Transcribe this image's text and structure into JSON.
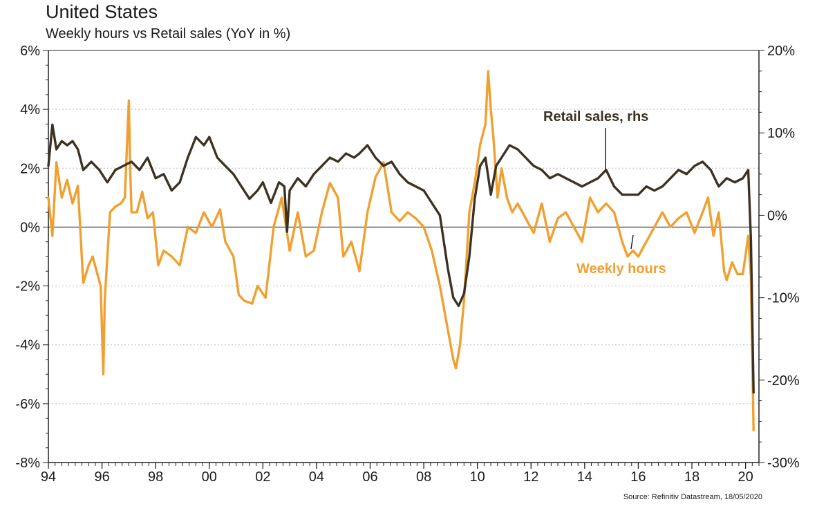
{
  "title": "United States",
  "subtitle": "Weekly hours vs Retail sales (YoY in %)",
  "source": "Source: Refinitiv Datastream, 18/05/2020",
  "colors": {
    "weekly_hours": "#f0a030",
    "retail_sales": "#3b3224",
    "grid": "#bdbdbd"
  },
  "chart_data": {
    "type": "line",
    "title": "United States",
    "subtitle": "Weekly hours vs Retail sales (YoY in %)",
    "xlim": [
      1994,
      2020.5
    ],
    "x_ticks": [
      1994,
      1996,
      1998,
      2000,
      2002,
      2004,
      2006,
      2008,
      2010,
      2012,
      2014,
      2016,
      2018,
      2020
    ],
    "x_tick_labels": [
      "94",
      "96",
      "98",
      "00",
      "02",
      "04",
      "06",
      "08",
      "10",
      "12",
      "14",
      "16",
      "18",
      "20"
    ],
    "y_left": {
      "lim": [
        -8,
        6
      ],
      "ticks": [
        6,
        4,
        2,
        0,
        -2,
        -4,
        -6,
        -8
      ],
      "labels": [
        "6%",
        "4%",
        "2%",
        "0%",
        "-2%",
        "-4%",
        "-6%",
        "-8%"
      ]
    },
    "y_right": {
      "lim": [
        -30,
        20
      ],
      "ticks": [
        20,
        10,
        0,
        -10,
        -20,
        -30
      ],
      "labels": [
        "20%",
        "10%",
        "0%",
        "-10%",
        "-20%",
        "-30%"
      ]
    },
    "grid": true,
    "annotations": [
      "Retail sales, rhs",
      "Weekly hours"
    ],
    "series": [
      {
        "name": "Weekly hours",
        "axis": "left",
        "x": [
          1994.0,
          1994.15,
          1994.3,
          1994.5,
          1994.7,
          1994.9,
          1995.1,
          1995.3,
          1995.5,
          1995.65,
          1995.8,
          1995.95,
          1996.05,
          1996.1,
          1996.3,
          1996.5,
          1996.7,
          1996.85,
          1997.0,
          1997.05,
          1997.1,
          1997.3,
          1997.5,
          1997.7,
          1997.9,
          1998.1,
          1998.3,
          1998.6,
          1998.9,
          1999.2,
          1999.5,
          1999.8,
          2000.1,
          2000.4,
          2000.6,
          2000.9,
          2001.1,
          2001.3,
          2001.6,
          2001.8,
          2002.1,
          2002.4,
          2002.7,
          2003.0,
          2003.3,
          2003.6,
          2003.9,
          2004.2,
          2004.5,
          2004.8,
          2005.0,
          2005.3,
          2005.6,
          2005.9,
          2006.2,
          2006.5,
          2006.8,
          2007.1,
          2007.4,
          2007.7,
          2008.0,
          2008.3,
          2008.6,
          2008.9,
          2009.1,
          2009.2,
          2009.35,
          2009.5,
          2009.7,
          2009.9,
          2010.1,
          2010.3,
          2010.4,
          2010.5,
          2010.6,
          2010.75,
          2010.9,
          2011.1,
          2011.3,
          2011.5,
          2011.8,
          2012.1,
          2012.4,
          2012.7,
          2013.0,
          2013.3,
          2013.6,
          2013.9,
          2014.2,
          2014.5,
          2014.8,
          2015.1,
          2015.4,
          2015.6,
          2015.8,
          2016.0,
          2016.3,
          2016.6,
          2016.9,
          2017.2,
          2017.5,
          2017.8,
          2018.1,
          2018.4,
          2018.6,
          2018.8,
          2019.0,
          2019.2,
          2019.3,
          2019.5,
          2019.7,
          2019.9,
          2020.1,
          2020.2,
          2020.3
        ],
        "values": [
          1.0,
          -0.3,
          2.2,
          1.0,
          1.6,
          0.8,
          1.4,
          -1.9,
          -1.3,
          -1.0,
          -1.5,
          -2.0,
          -5.0,
          -2.5,
          0.5,
          0.7,
          0.8,
          1.0,
          4.3,
          2.0,
          0.5,
          0.5,
          1.2,
          0.3,
          0.5,
          -1.3,
          -0.8,
          -1.0,
          -1.3,
          0.0,
          -0.2,
          0.5,
          0.0,
          0.6,
          -0.5,
          -1.0,
          -2.3,
          -2.5,
          -2.6,
          -2.0,
          -2.4,
          0.0,
          1.0,
          -0.8,
          0.5,
          -1.0,
          -0.8,
          0.5,
          1.5,
          1.0,
          -1.0,
          -0.5,
          -1.5,
          0.5,
          1.7,
          2.2,
          0.5,
          0.2,
          0.5,
          0.3,
          0.0,
          -0.8,
          -2.0,
          -3.5,
          -4.5,
          -4.8,
          -4.0,
          -2.5,
          0.5,
          1.5,
          2.8,
          3.5,
          5.3,
          4.0,
          3.0,
          1.0,
          2.0,
          1.0,
          0.5,
          0.8,
          0.3,
          -0.2,
          0.8,
          -0.5,
          0.3,
          0.5,
          0.0,
          -0.5,
          1.0,
          0.5,
          0.8,
          0.5,
          -0.5,
          -1.0,
          -0.8,
          -1.0,
          -0.5,
          0.0,
          0.5,
          0.0,
          0.3,
          0.5,
          -0.2,
          0.5,
          1.0,
          -0.3,
          0.5,
          -1.5,
          -1.8,
          -1.2,
          -1.6,
          -1.6,
          -0.3,
          -1.7,
          -6.9
        ]
      },
      {
        "name": "Retail sales, rhs",
        "axis": "right",
        "x": [
          1994.0,
          1994.15,
          1994.3,
          1994.5,
          1994.7,
          1994.9,
          1995.1,
          1995.3,
          1995.6,
          1995.9,
          1996.2,
          1996.5,
          1996.8,
          1997.1,
          1997.4,
          1997.7,
          1998.0,
          1998.3,
          1998.6,
          1998.9,
          1999.2,
          1999.5,
          1999.8,
          2000.0,
          2000.3,
          2000.6,
          2000.9,
          2001.2,
          2001.5,
          2001.8,
          2002.0,
          2002.3,
          2002.6,
          2002.8,
          2002.9,
          2003.0,
          2003.3,
          2003.6,
          2003.9,
          2004.2,
          2004.5,
          2004.8,
          2005.1,
          2005.4,
          2005.6,
          2005.9,
          2006.2,
          2006.5,
          2006.8,
          2007.1,
          2007.4,
          2007.7,
          2008.0,
          2008.3,
          2008.6,
          2008.9,
          2009.1,
          2009.3,
          2009.5,
          2009.7,
          2009.9,
          2010.1,
          2010.3,
          2010.5,
          2010.7,
          2010.9,
          2011.2,
          2011.5,
          2011.8,
          2012.1,
          2012.4,
          2012.7,
          2013.0,
          2013.3,
          2013.6,
          2013.9,
          2014.2,
          2014.5,
          2014.8,
          2015.1,
          2015.4,
          2015.7,
          2016.0,
          2016.3,
          2016.6,
          2016.9,
          2017.2,
          2017.5,
          2017.8,
          2018.1,
          2018.4,
          2018.7,
          2019.0,
          2019.3,
          2019.6,
          2019.9,
          2020.1,
          2020.2,
          2020.3
        ],
        "values": [
          6.0,
          11.0,
          8.0,
          9.0,
          8.5,
          9.0,
          8.0,
          5.5,
          6.5,
          5.5,
          4.0,
          5.5,
          6.0,
          6.5,
          5.5,
          7.0,
          4.5,
          5.0,
          3.0,
          4.0,
          7.0,
          9.5,
          8.5,
          9.5,
          7.0,
          6.0,
          5.0,
          3.5,
          2.0,
          3.0,
          4.0,
          1.5,
          4.0,
          3.5,
          -2.0,
          3.0,
          4.5,
          3.5,
          5.0,
          6.0,
          7.0,
          6.5,
          7.5,
          7.0,
          7.5,
          8.5,
          7.0,
          6.0,
          6.5,
          5.0,
          4.0,
          3.5,
          3.0,
          1.5,
          0.0,
          -6.5,
          -10.0,
          -11.0,
          -9.5,
          -5.0,
          2.0,
          6.0,
          7.0,
          2.5,
          6.0,
          7.0,
          8.5,
          8.0,
          7.0,
          6.0,
          5.5,
          4.5,
          5.0,
          4.5,
          4.0,
          3.5,
          4.0,
          4.5,
          5.5,
          3.5,
          2.5,
          2.5,
          2.5,
          3.5,
          3.0,
          3.5,
          4.5,
          5.5,
          5.0,
          6.0,
          6.5,
          5.5,
          3.5,
          4.5,
          4.0,
          4.5,
          5.5,
          -3.0,
          -21.5
        ]
      }
    ]
  }
}
